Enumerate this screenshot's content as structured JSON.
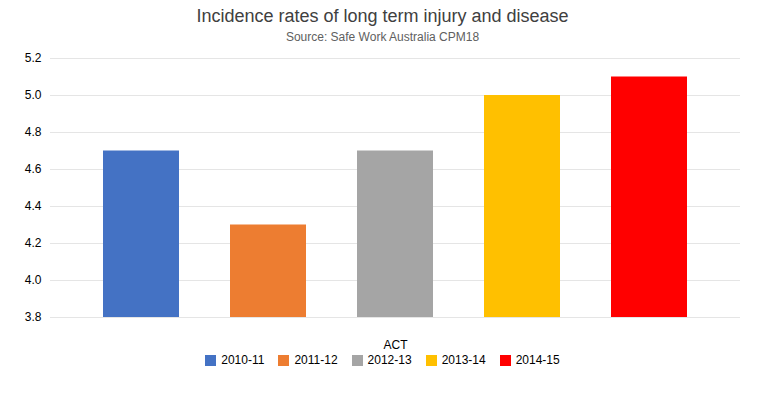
{
  "chart_data": {
    "type": "bar",
    "title": "Incidence rates of long term injury and disease",
    "subtitle": "Source: Safe Work Australia CPM18",
    "xlabel": "ACT",
    "categories": [
      "2010-11",
      "2011-12",
      "2012-13",
      "2013-14",
      "2014-15"
    ],
    "values": [
      4.7,
      4.3,
      4.7,
      5.0,
      5.1
    ],
    "colors": [
      "#4472C4",
      "#ED7D31",
      "#A5A5A5",
      "#FFC000",
      "#FF0000"
    ],
    "ylim": [
      3.8,
      5.2
    ],
    "yticks": [
      3.8,
      {
        "value": 4.0,
        "label": "4.0"
      },
      4.2,
      4.4,
      4.6,
      4.8,
      {
        "value": 5.0,
        "label": "5.0"
      },
      5.2
    ],
    "grid": true,
    "legend": "bottom",
    "tick_labels": "y"
  }
}
